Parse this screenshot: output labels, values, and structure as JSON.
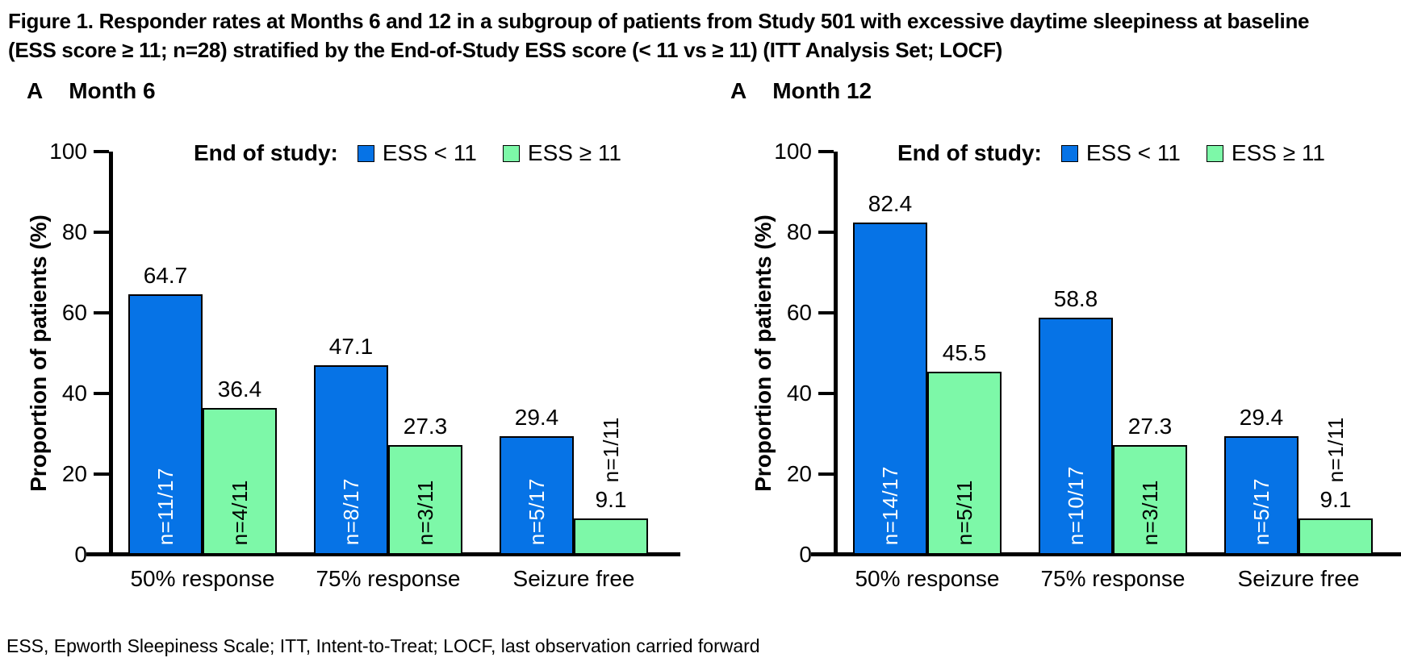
{
  "figure": {
    "title_lines": [
      "Figure 1. Responder rates at Months 6 and 12 in a subgroup of patients from Study 501 with excessive daytime sleepiness at baseline",
      "(ESS score ≥ 11; n=28) stratified by the End-of-Study ESS score (< 11 vs ≥ 11) (ITT Analysis Set; LOCF)"
    ],
    "footnote": "ESS, Epworth Sleepiness Scale; ITT, Intent-to-Treat; LOCF, last observation carried forward"
  },
  "colors": {
    "series_blue": "#0673E6",
    "series_green": "#7DF8A8",
    "axis": "#000000",
    "bar_border": "#000000",
    "text": "#000000"
  },
  "legend": {
    "label": "End of study:",
    "items": [
      {
        "text": "ESS < 11",
        "color": "#0673E6"
      },
      {
        "text": "ESS ≥ 11",
        "color": "#7DF8A8"
      }
    ]
  },
  "chart_data": [
    {
      "type": "bar",
      "panel_letter": "A",
      "panel_title": "Month 6",
      "ylabel": "Proportion of patients (%)",
      "ylim": [
        0,
        100
      ],
      "yticks": [
        0,
        20,
        40,
        60,
        80,
        100
      ],
      "grid": false,
      "legend_position": "top",
      "categories": [
        "50% response",
        "75% response",
        "Seizure free"
      ],
      "series": [
        {
          "name": "ESS < 11",
          "color": "#0673E6",
          "label_color": "#FFFFFF",
          "values": [
            64.7,
            47.1,
            29.4
          ],
          "bar_labels": [
            "n=11/17",
            "n=8/17",
            "n=5/17"
          ]
        },
        {
          "name": "ESS ≥ 11",
          "color": "#7DF8A8",
          "label_color": "#000000",
          "values": [
            36.4,
            27.3,
            9.1
          ],
          "bar_labels": [
            "n=4/11",
            "n=3/11",
            "n=1/11"
          ]
        }
      ]
    },
    {
      "type": "bar",
      "panel_letter": "A",
      "panel_title": "Month 12",
      "ylabel": "Proportion of patients (%)",
      "ylim": [
        0,
        100
      ],
      "yticks": [
        0,
        20,
        40,
        60,
        80,
        100
      ],
      "grid": false,
      "legend_position": "top",
      "categories": [
        "50% response",
        "75% response",
        "Seizure free"
      ],
      "series": [
        {
          "name": "ESS < 11",
          "color": "#0673E6",
          "label_color": "#FFFFFF",
          "values": [
            82.4,
            58.8,
            29.4
          ],
          "bar_labels": [
            "n=14/17",
            "n=10/17",
            "n=5/17"
          ]
        },
        {
          "name": "ESS ≥ 11",
          "color": "#7DF8A8",
          "label_color": "#000000",
          "values": [
            45.5,
            27.3,
            9.1
          ],
          "bar_labels": [
            "n=5/11",
            "n=3/11",
            "n=1/11"
          ]
        }
      ]
    }
  ]
}
